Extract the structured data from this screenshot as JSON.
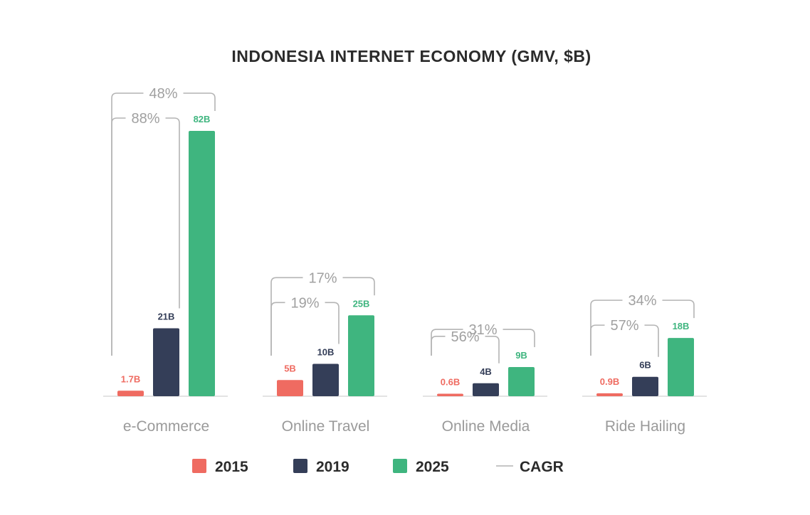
{
  "chart_data": {
    "type": "bar",
    "title": "INDONESIA INTERNET ECONOMY (GMV, $B)",
    "categories": [
      "e-Commerce",
      "Online Travel",
      "Online Media",
      "Ride Hailing"
    ],
    "series": [
      {
        "name": "2015",
        "color": "#ef6b61",
        "values": [
          1.7,
          5,
          0.6,
          0.9
        ],
        "labels": [
          "1.7B",
          "5B",
          "0.6B",
          "0.9B"
        ]
      },
      {
        "name": "2019",
        "color": "#343e58",
        "values": [
          21,
          10,
          4,
          6
        ],
        "labels": [
          "21B",
          "10B",
          "4B",
          "6B"
        ]
      },
      {
        "name": "2025",
        "color": "#3fb57f",
        "values": [
          82,
          25,
          9,
          18
        ],
        "labels": [
          "82B",
          "25B",
          "9B",
          "18B"
        ]
      }
    ],
    "cagr": {
      "name": "CAGR",
      "2015_to_2025": [
        "48%",
        "17%",
        "31%",
        "34%"
      ],
      "2015_to_2019": [
        "88%",
        "19%",
        "56%",
        "57%"
      ]
    },
    "legend_position": "bottom",
    "grid": false
  }
}
